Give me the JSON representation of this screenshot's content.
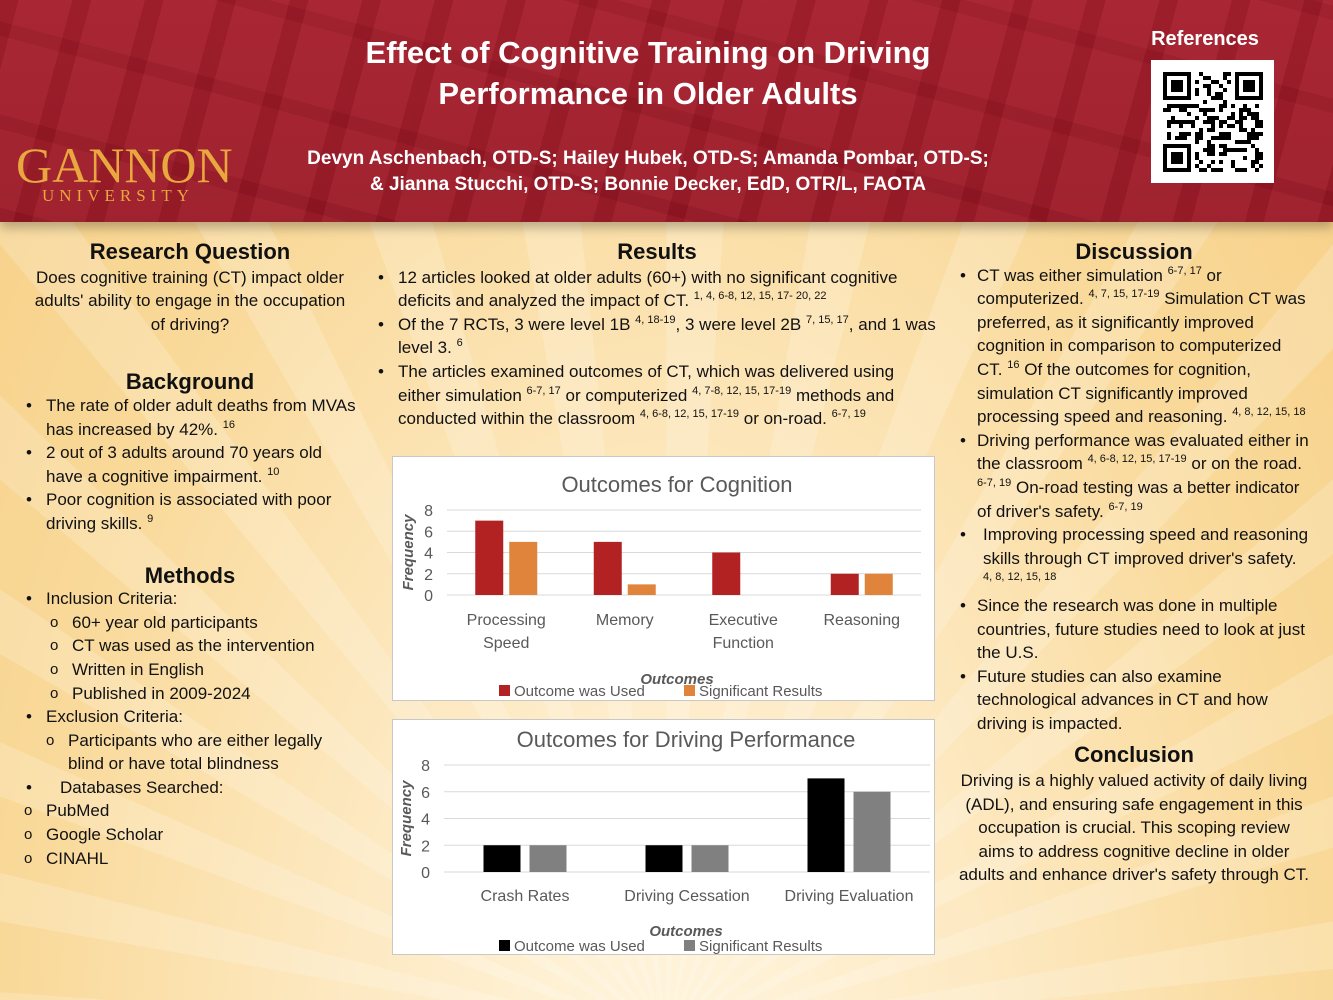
{
  "header": {
    "logo_name": "GANNON",
    "logo_sub": "UNIVERSITY",
    "title_line1": "Effect of Cognitive Training on Driving",
    "title_line2": "Performance in Older Adults",
    "authors_line1": "Devyn Aschenbach, OTD-S; Hailey Hubek, OTD-S; Amanda Pombar, OTD-S;",
    "authors_line2": "& Jianna Stucchi, OTD-S; Bonnie Decker, EdD, OTR/L, FAOTA",
    "references_label": "References"
  },
  "left": {
    "rq_heading": "Research Question",
    "rq_text": "Does cognitive training (CT) impact older adults' ability to engage in the occupation of driving?",
    "bg_heading": "Background",
    "bg_items": [
      {
        "text": "The rate of older adult deaths from MVAs has increased by 42%.",
        "sup": "16"
      },
      {
        "text": "2 out of 3 adults around 70 years old have a cognitive impairment.",
        "sup": "10"
      },
      {
        "text": "Poor cognition is associated with poor driving skills.",
        "sup": "9"
      }
    ],
    "methods_heading": "Methods",
    "inclusion_label": "Inclusion Criteria:",
    "inclusion_items": [
      "60+ year old participants",
      "CT was used as the intervention",
      "Written in English",
      "Published in 2009-2024"
    ],
    "exclusion_label": "Exclusion Criteria:",
    "exclusion_item": "Participants who are either legally blind or have total blindness",
    "databases_label": "Databases Searched:",
    "databases": [
      "PubMed",
      "Google Scholar",
      "CINAHL"
    ]
  },
  "results": {
    "heading": "Results",
    "b1_text": "12 articles looked at older adults (60+) with no significant cognitive deficits and analyzed the impact of CT.",
    "b1_sup": "1, 4, 6-8, 12, 15, 17- 20, 22",
    "b2_a": "Of the 7 RCTs, 3 were level 1B",
    "b2_sup1": "4, 18-19",
    "b2_b": ", 3 were level 2B",
    "b2_sup2": "7, 15, 17",
    "b2_c": ", and 1 was level 3.",
    "b2_sup3": "6",
    "b3_a": "The articles examined outcomes of CT, which was delivered using either simulation",
    "b3_sup1": "6-7, 17",
    "b3_b": "or computerized",
    "b3_sup2": "4, 7-8, 12, 15, 17-19",
    "b3_c": "methods and conducted within the classroom",
    "b3_sup3": "4, 6-8, 12, 15, 17-19",
    "b3_d": "or on-road.",
    "b3_sup4": "6-7, 19"
  },
  "discussion": {
    "heading": "Discussion",
    "d1_a": "CT was either simulation",
    "d1_sup1": "6-7, 17",
    "d1_b": "or computerized.",
    "d1_sup2": "4, 7, 15, 17-19",
    "d1_c": "Simulation CT was preferred, as it significantly improved cognition in comparison to computerized CT.",
    "d1_sup3": "16",
    "d1_d": "Of the outcomes for cognition, simulation CT significantly improved processing speed and reasoning.",
    "d1_sup4": "4, 8, 12, 15, 18",
    "d2_a": "Driving performance was evaluated either in the classroom",
    "d2_sup1": "4, 6-8, 12, 15, 17-19",
    "d2_b": "or on the road.",
    "d2_sup2": "6-7, 19",
    "d2_c": "On-road testing was a better indicator of driver's safety.",
    "d2_sup3": "6-7, 19",
    "d3": "Improving processing speed and reasoning skills through CT improved driver's safety.",
    "d3_sup": "4, 8, 12, 15, 18",
    "d4": "Since the research was done in multiple countries, future studies need to look at just the U.S.",
    "d5": "Future studies can also examine technological advances in CT and how driving is impacted.",
    "conclusion_heading": "Conclusion",
    "conclusion_text": "Driving is a highly valued activity of daily living (ADL), and ensuring safe engagement in this occupation is crucial. This scoping review aims to address cognitive decline in older adults and enhance driver's safety through CT."
  },
  "chart_data": [
    {
      "type": "bar",
      "title": "Outcomes for Cognition",
      "xlabel": "Outcomes",
      "ylabel": "Frequency",
      "categories": [
        [
          "Processing",
          "Speed"
        ],
        [
          "Memory"
        ],
        [
          "Executive",
          "Function"
        ],
        [
          "Reasoning"
        ]
      ],
      "series": [
        {
          "name": "Outcome was Used",
          "values": [
            7,
            5,
            4,
            2
          ],
          "color": "#b22222"
        },
        {
          "name": "Significant Results",
          "values": [
            5,
            1,
            0,
            2
          ],
          "color": "#e0843c"
        }
      ],
      "ylim": [
        0,
        8
      ],
      "yticks": [
        0,
        2,
        4,
        6,
        8
      ],
      "grid": true,
      "legend": "bottom"
    },
    {
      "type": "bar",
      "title": "Outcomes for Driving Performance",
      "xlabel": "Outcomes",
      "ylabel": "Frequency",
      "categories": [
        [
          "Crash Rates"
        ],
        [
          "Driving Cessation"
        ],
        [
          "Driving Evaluation"
        ]
      ],
      "series": [
        {
          "name": "Outcome was Used",
          "values": [
            2,
            2,
            7
          ],
          "color": "#000000"
        },
        {
          "name": "Significant Results",
          "values": [
            2,
            2,
            6
          ],
          "color": "#808080"
        }
      ],
      "ylim": [
        0,
        8
      ],
      "yticks": [
        0,
        2,
        4,
        6,
        8
      ],
      "grid": true,
      "legend": "bottom"
    }
  ]
}
